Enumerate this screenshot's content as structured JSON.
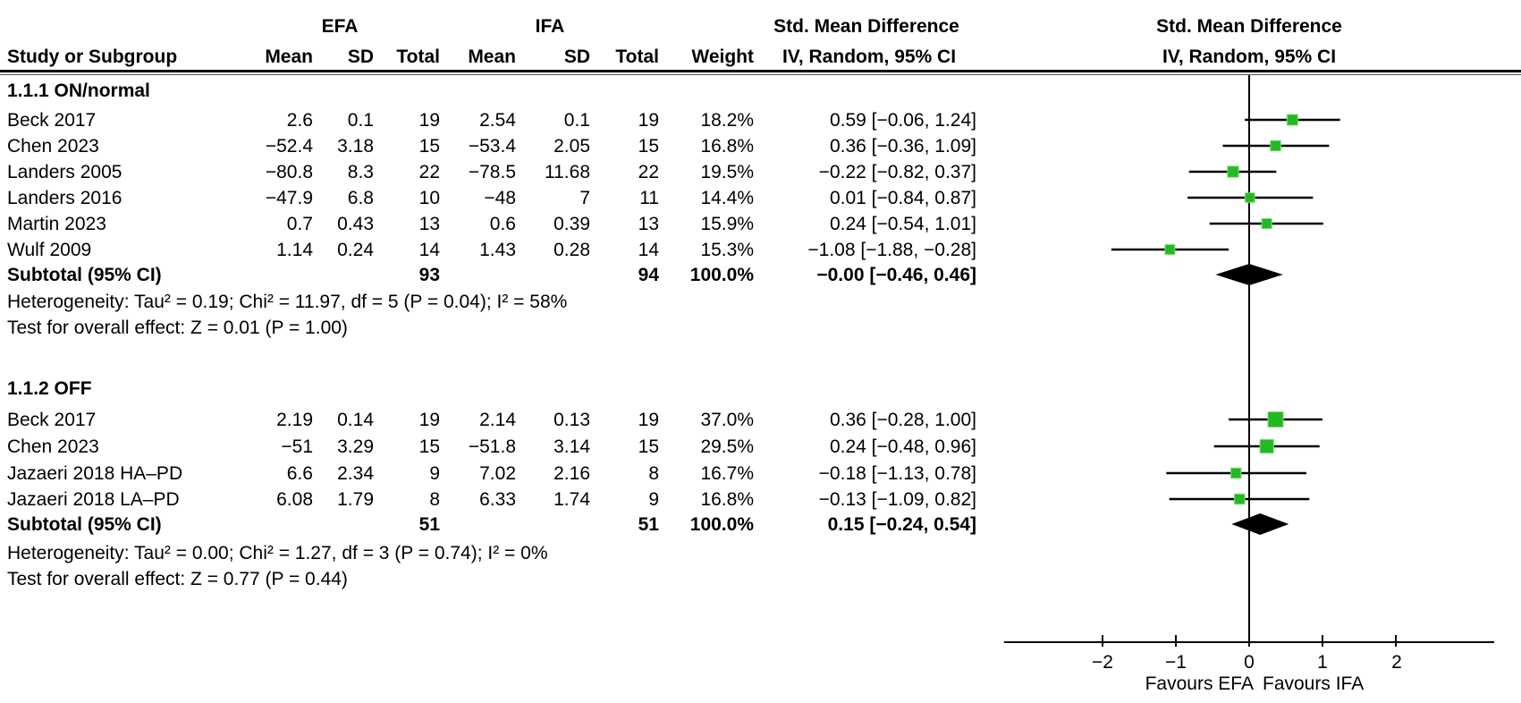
{
  "header": {
    "study_col": "Study or Subgroup",
    "efa_label": "EFA",
    "ifa_label": "IFA",
    "mean": "Mean",
    "sd": "SD",
    "total": "Total",
    "weight": "Weight",
    "smd_title": "Std. Mean Difference",
    "smd_subtitle": "IV, Random, 95% CI"
  },
  "groups": [
    {
      "label": "1.1.1 ON/normal",
      "studies": [
        {
          "name": "Beck 2017",
          "mean1": "2.6",
          "sd1": "0.1",
          "total1": "19",
          "mean2": "2.54",
          "sd2": "0.1",
          "total2": "19",
          "weight": "18.2%",
          "ci_text": "0.59 [−0.06, 1.24]"
        },
        {
          "name": "Chen 2023",
          "mean1": "−52.4",
          "sd1": "3.18",
          "total1": "15",
          "mean2": "−53.4",
          "sd2": "2.05",
          "total2": "15",
          "weight": "16.8%",
          "ci_text": "0.36 [−0.36, 1.09]"
        },
        {
          "name": "Landers 2005",
          "mean1": "−80.8",
          "sd1": "8.3",
          "total1": "22",
          "mean2": "−78.5",
          "sd2": "11.68",
          "total2": "22",
          "weight": "19.5%",
          "ci_text": "−0.22 [−0.82, 0.37]"
        },
        {
          "name": "Landers 2016",
          "mean1": "−47.9",
          "sd1": "6.8",
          "total1": "10",
          "mean2": "−48",
          "sd2": "7",
          "total2": "11",
          "weight": "14.4%",
          "ci_text": "0.01 [−0.84, 0.87]"
        },
        {
          "name": "Martin 2023",
          "mean1": "0.7",
          "sd1": "0.43",
          "total1": "13",
          "mean2": "0.6",
          "sd2": "0.39",
          "total2": "13",
          "weight": "15.9%",
          "ci_text": "0.24 [−0.54, 1.01]"
        },
        {
          "name": "Wulf 2009",
          "mean1": "1.14",
          "sd1": "0.24",
          "total1": "14",
          "mean2": "1.43",
          "sd2": "0.28",
          "total2": "14",
          "weight": "15.3%",
          "ci_text": "−1.08 [−1.88, −0.28]"
        }
      ],
      "subtotal": {
        "label": "Subtotal (95% CI)",
        "total1": "93",
        "total2": "94",
        "weight": "100.0%",
        "ci_text": "−0.00 [−0.46, 0.46]"
      },
      "heterogeneity": "Heterogeneity: Tau² = 0.19; Chi² = 11.97, df = 5 (P = 0.04); I² = 58%",
      "overall_effect": "Test for overall effect: Z = 0.01 (P = 1.00)"
    },
    {
      "label": "1.1.2 OFF",
      "studies": [
        {
          "name": "Beck 2017",
          "mean1": "2.19",
          "sd1": "0.14",
          "total1": "19",
          "mean2": "2.14",
          "sd2": "0.13",
          "total2": "19",
          "weight": "37.0%",
          "ci_text": "0.36 [−0.28, 1.00]"
        },
        {
          "name": "Chen 2023",
          "mean1": "−51",
          "sd1": "3.29",
          "total1": "15",
          "mean2": "−51.8",
          "sd2": "3.14",
          "total2": "15",
          "weight": "29.5%",
          "ci_text": "0.24 [−0.48, 0.96]"
        },
        {
          "name": "Jazaeri 2018 HA–PD",
          "mean1": "6.6",
          "sd1": "2.34",
          "total1": "9",
          "mean2": "7.02",
          "sd2": "2.16",
          "total2": "8",
          "weight": "16.7%",
          "ci_text": "−0.18 [−1.13, 0.78]"
        },
        {
          "name": "Jazaeri 2018 LA–PD",
          "mean1": "6.08",
          "sd1": "1.79",
          "total1": "8",
          "mean2": "6.33",
          "sd2": "1.74",
          "total2": "9",
          "weight": "16.8%",
          "ci_text": "−0.13 [−1.09, 0.82]"
        }
      ],
      "subtotal": {
        "label": "Subtotal (95% CI)",
        "total1": "51",
        "total2": "51",
        "weight": "100.0%",
        "ci_text": "0.15 [−0.24, 0.54]"
      },
      "heterogeneity": "Heterogeneity: Tau² = 0.00; Chi² = 1.27, df = 3 (P = 0.74); I² = 0%",
      "overall_effect": "Test for overall effect: Z = 0.77 (P = 0.44)"
    }
  ],
  "axis": {
    "ticks": [
      "−2",
      "−1",
      "0",
      "1",
      "2"
    ],
    "favours_left": "Favours EFA",
    "favours_right": "Favours IFA"
  },
  "chart_data": {
    "type": "scatter",
    "variant": "forest_plot",
    "title": "Std. Mean Difference, IV, Random, 95% CI",
    "x_ticks": [
      -2,
      -1,
      0,
      1,
      2
    ],
    "xlim": [
      -3.3,
      3.3
    ],
    "xlabel_left": "Favours EFA",
    "xlabel_right": "Favours IFA",
    "marker_color": "#22BA22",
    "marker_edge_color": "#7fdd7f",
    "line_color": "#000000",
    "groups": [
      {
        "name": "1.1.1 ON/normal",
        "studies": [
          {
            "name": "Beck 2017",
            "smd": 0.59,
            "ci_low": -0.06,
            "ci_high": 1.24,
            "weight": 18.2
          },
          {
            "name": "Chen 2023",
            "smd": 0.36,
            "ci_low": -0.36,
            "ci_high": 1.09,
            "weight": 16.8
          },
          {
            "name": "Landers 2005",
            "smd": -0.22,
            "ci_low": -0.82,
            "ci_high": 0.37,
            "weight": 19.5
          },
          {
            "name": "Landers 2016",
            "smd": 0.01,
            "ci_low": -0.84,
            "ci_high": 0.87,
            "weight": 14.4
          },
          {
            "name": "Martin 2023",
            "smd": 0.24,
            "ci_low": -0.54,
            "ci_high": 1.01,
            "weight": 15.9
          },
          {
            "name": "Wulf 2009",
            "smd": -1.08,
            "ci_low": -1.88,
            "ci_high": -0.28,
            "weight": 15.3
          }
        ],
        "subtotal": {
          "smd": 0.0,
          "ci_low": -0.46,
          "ci_high": 0.46
        }
      },
      {
        "name": "1.1.2 OFF",
        "studies": [
          {
            "name": "Beck 2017",
            "smd": 0.36,
            "ci_low": -0.28,
            "ci_high": 1.0,
            "weight": 37.0
          },
          {
            "name": "Chen 2023",
            "smd": 0.24,
            "ci_low": -0.48,
            "ci_high": 0.96,
            "weight": 29.5
          },
          {
            "name": "Jazaeri 2018 HA-PD",
            "smd": -0.18,
            "ci_low": -1.13,
            "ci_high": 0.78,
            "weight": 16.7
          },
          {
            "name": "Jazaeri 2018 LA-PD",
            "smd": -0.13,
            "ci_low": -1.09,
            "ci_high": 0.82,
            "weight": 16.8
          }
        ],
        "subtotal": {
          "smd": 0.15,
          "ci_low": -0.24,
          "ci_high": 0.54
        }
      }
    ]
  }
}
